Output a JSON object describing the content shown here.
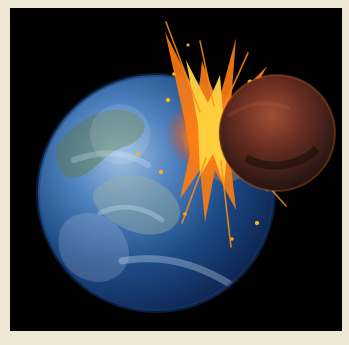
{
  "scene": {
    "subject": "planet-collision",
    "colors": {
      "background": "#eee7d5",
      "space": "#000000",
      "earth_deep": "#0b1f4a",
      "earth_mid": "#2f5f9d",
      "earth_light": "#9fc0e1",
      "impactor_dark": "#1b1210",
      "impactor_mid": "#7a3a27",
      "fire_yellow": "#ffd23d",
      "fire_orange": "#ff8a12",
      "fire_red": "#d73b0d"
    }
  }
}
